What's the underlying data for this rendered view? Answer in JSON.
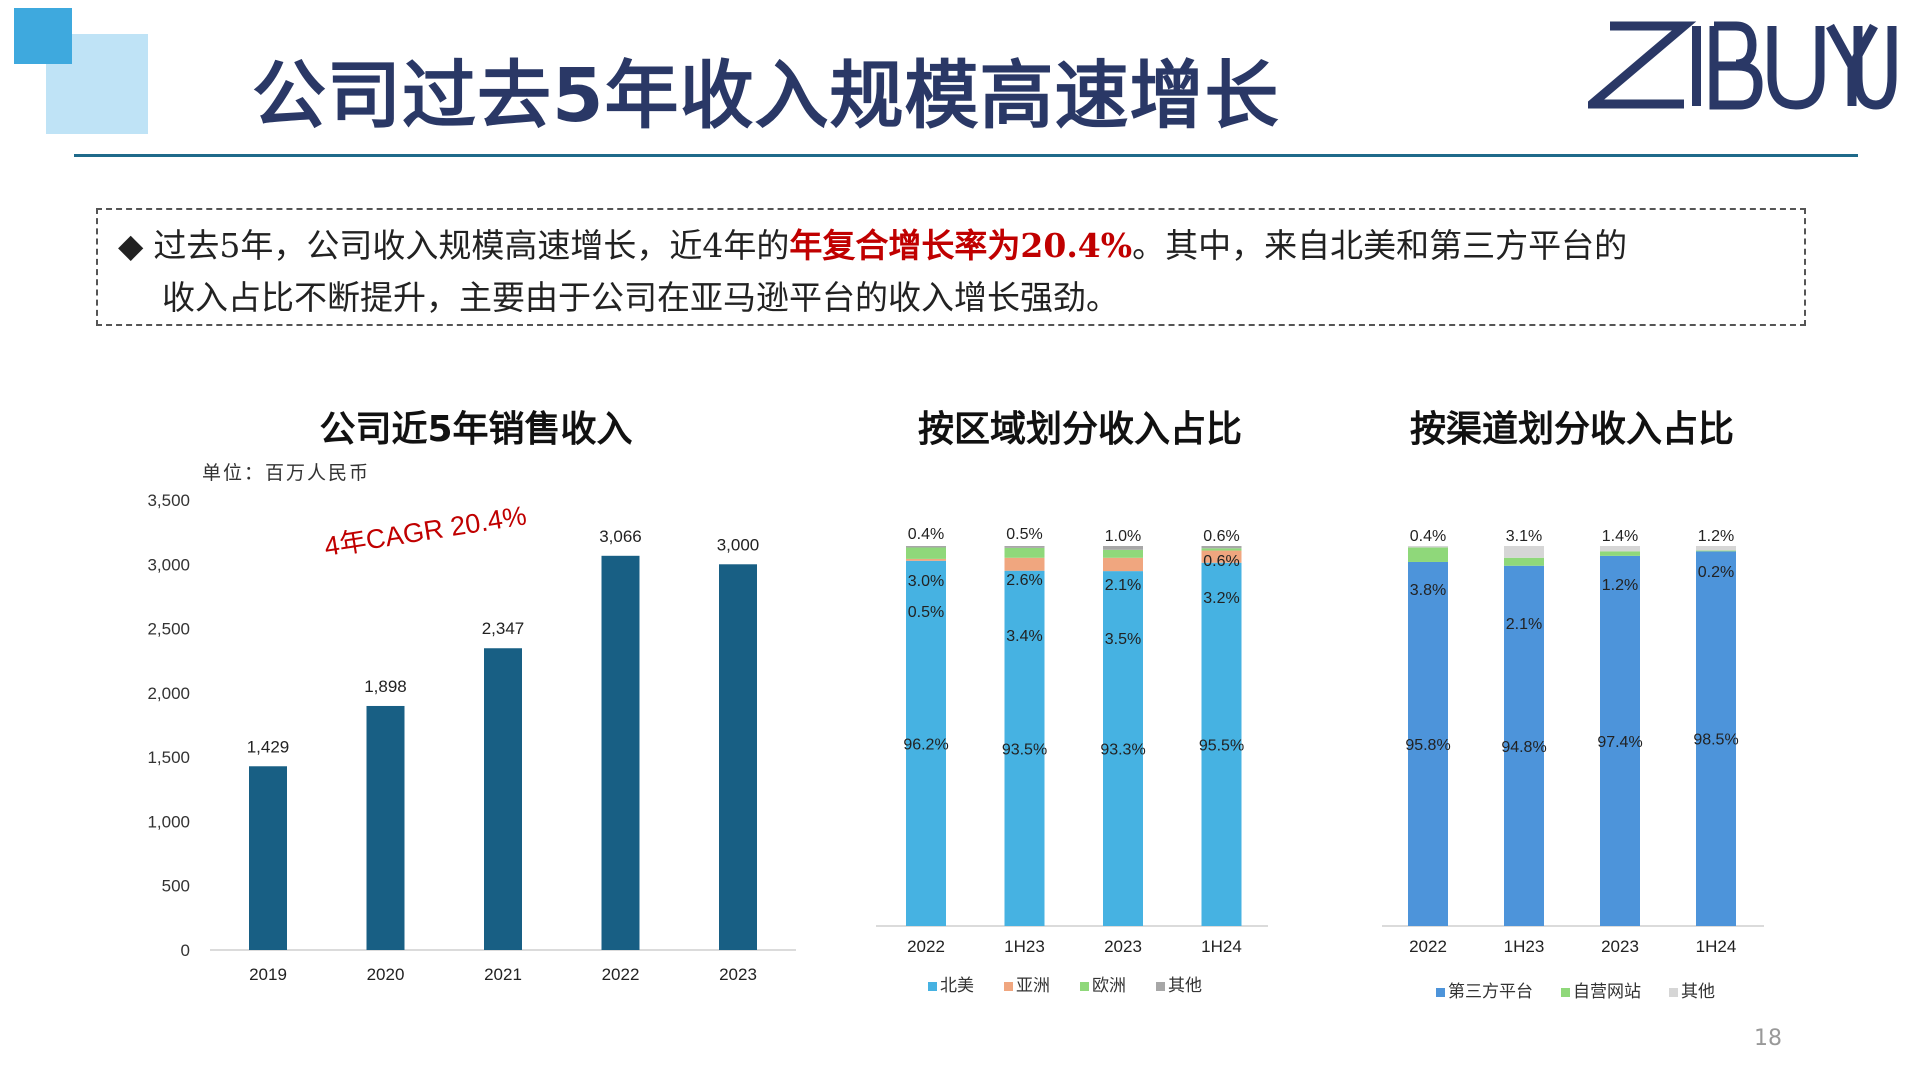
{
  "header": {
    "title": "公司过去5年收入规模高速增长",
    "logo_text": "ZIBUYU"
  },
  "summary": {
    "bullet": "◆",
    "line1_pre": "过去5年，公司收入规模高速增长，近4年的",
    "line1_highlight": "年复合增长率为20.4%",
    "line1_post": "。其中，来自北美和第三方平台的",
    "line2": "收入占比不断提升，主要由于公司在亚马逊平台的收入增长强劲。"
  },
  "page_number": "18",
  "colors": {
    "title": "#2a3866",
    "revenue_bar": "#185f84",
    "north_america": "#46b2e2",
    "asia": "#f0a67f",
    "europe": "#8fd87a",
    "other_region": "#a7a7a7",
    "third_party": "#4d94da",
    "own_site": "#8fd87a",
    "other_channel": "#d6d6d6",
    "highlight": "#c00000"
  },
  "chart_data": [
    {
      "type": "bar",
      "title": "公司近5年销售收入",
      "unit": "单位：百万人民币",
      "annotation": "4年CAGR 20.4%",
      "categories": [
        "2019",
        "2020",
        "2021",
        "2022",
        "2023"
      ],
      "values": [
        1429,
        1898,
        2347,
        3066,
        3000
      ],
      "data_labels": [
        "1,429",
        "1,898",
        "2,347",
        "3,066",
        "3,000"
      ],
      "ylim": [
        0,
        3500
      ],
      "yticks": [
        0,
        500,
        1000,
        1500,
        2000,
        2500,
        3000,
        3500
      ],
      "ytick_labels": [
        "0",
        "500",
        "1,000",
        "1,500",
        "2,000",
        "2,500",
        "3,000",
        "3,500"
      ],
      "grid": false,
      "legend": "none"
    },
    {
      "type": "bar",
      "stacked": true,
      "title": "按区域划分收入占比",
      "categories": [
        "2022",
        "1H23",
        "2023",
        "1H24"
      ],
      "series": [
        {
          "name": "北美",
          "values": [
            96.2,
            93.5,
            93.3,
            95.5
          ],
          "labels": [
            "96.2%",
            "93.5%",
            "93.3%",
            "95.5%"
          ]
        },
        {
          "name": "亚洲",
          "values": [
            0.5,
            3.4,
            3.5,
            3.2
          ],
          "labels": [
            "0.5%",
            "3.4%",
            "3.5%",
            "3.2%"
          ]
        },
        {
          "name": "欧洲",
          "values": [
            3.0,
            2.6,
            2.1,
            0.6
          ],
          "labels": [
            "3.0%",
            "2.6%",
            "2.1%",
            "0.6%"
          ]
        },
        {
          "name": "其他",
          "values": [
            0.4,
            0.5,
            1.0,
            0.6
          ],
          "labels": [
            "0.4%",
            "0.5%",
            "1.0%",
            "0.6%"
          ]
        }
      ],
      "legend": "bottom"
    },
    {
      "type": "bar",
      "stacked": true,
      "title": "按渠道划分收入占比",
      "categories": [
        "2022",
        "1H23",
        "2023",
        "1H24"
      ],
      "series": [
        {
          "name": "第三方平台",
          "values": [
            95.8,
            94.8,
            97.4,
            98.5
          ],
          "labels": [
            "95.8%",
            "94.8%",
            "97.4%",
            "98.5%"
          ]
        },
        {
          "name": "自营网站",
          "values": [
            3.8,
            2.1,
            1.2,
            0.2
          ],
          "labels": [
            "3.8%",
            "2.1%",
            "1.2%",
            "0.2%"
          ]
        },
        {
          "name": "其他",
          "values": [
            0.4,
            3.1,
            1.4,
            1.2
          ],
          "labels": [
            "0.4%",
            "3.1%",
            "1.4%",
            "1.2%"
          ]
        }
      ],
      "legend": "bottom"
    }
  ]
}
